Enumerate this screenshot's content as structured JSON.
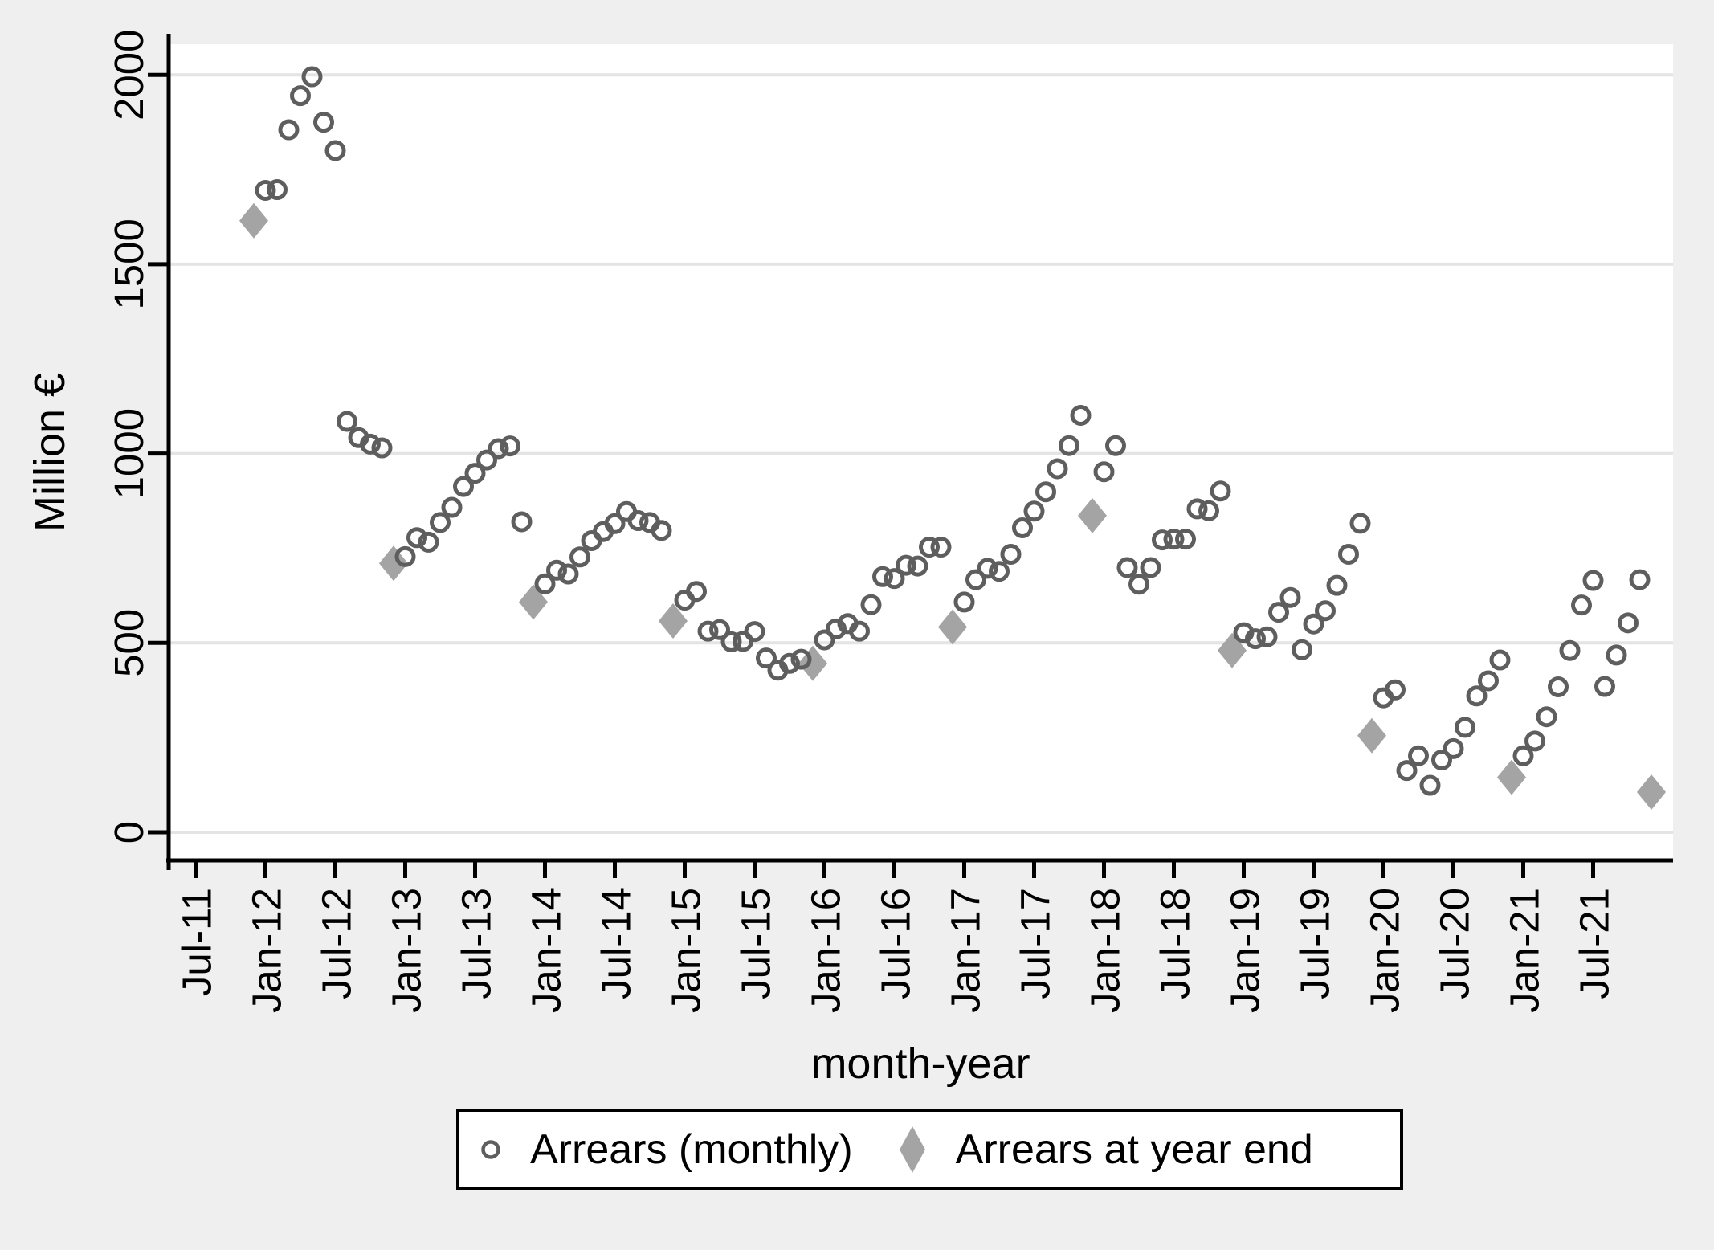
{
  "figure": {
    "background_color": "#efefef",
    "plot_background_color": "#ffffff",
    "grid_color": "#e4e4e4",
    "axis_color": "#000000",
    "text_color": "#000000"
  },
  "chart_data": {
    "type": "scatter",
    "title": "",
    "xlabel": "month-year",
    "ylabel": "Million €",
    "ylim": [
      0,
      2000
    ],
    "y_ticks": [
      0,
      500,
      1000,
      1500,
      2000
    ],
    "x_tick_labels": [
      "Jul-11",
      "Jan-12",
      "Jul-12",
      "Jan-13",
      "Jul-13",
      "Jan-14",
      "Jul-14",
      "Jan-15",
      "Jul-15",
      "Jan-16",
      "Jul-16",
      "Jan-17",
      "Jul-17",
      "Jan-18",
      "Jul-18",
      "Jan-19",
      "Jul-19",
      "Jan-20",
      "Jul-20",
      "Jan-21",
      "Jul-21"
    ],
    "grid": "horizontal",
    "legend_position": "bottom",
    "series": [
      {
        "name": "Arrears (monthly)",
        "marker": "circle",
        "color": "#5e5e5e",
        "points": [
          [
            "Jan-12",
            1695
          ],
          [
            "Feb-12",
            1697
          ],
          [
            "Mar-12",
            1855
          ],
          [
            "Apr-12",
            1945
          ],
          [
            "May-12",
            1995
          ],
          [
            "Jun-12",
            1875
          ],
          [
            "Jul-12",
            1800
          ],
          [
            "Aug-12",
            1085
          ],
          [
            "Sep-12",
            1042
          ],
          [
            "Oct-12",
            1025
          ],
          [
            "Nov-12",
            1015
          ],
          [
            "Jan-13",
            728
          ],
          [
            "Feb-13",
            778
          ],
          [
            "Mar-13",
            766
          ],
          [
            "Apr-13",
            818
          ],
          [
            "May-13",
            858
          ],
          [
            "Jun-13",
            913
          ],
          [
            "Jul-13",
            948
          ],
          [
            "Aug-13",
            983
          ],
          [
            "Sep-13",
            1013
          ],
          [
            "Oct-13",
            1020
          ],
          [
            "Nov-13",
            820
          ],
          [
            "Jan-14",
            656
          ],
          [
            "Feb-14",
            692
          ],
          [
            "Mar-14",
            682
          ],
          [
            "Apr-14",
            727
          ],
          [
            "May-14",
            770
          ],
          [
            "Jun-14",
            794
          ],
          [
            "Jul-14",
            815
          ],
          [
            "Aug-14",
            847
          ],
          [
            "Sep-14",
            823
          ],
          [
            "Oct-14",
            818
          ],
          [
            "Nov-14",
            797
          ],
          [
            "Jan-15",
            613
          ],
          [
            "Feb-15",
            636
          ],
          [
            "Mar-15",
            531
          ],
          [
            "Apr-15",
            535
          ],
          [
            "May-15",
            503
          ],
          [
            "Jun-15",
            504
          ],
          [
            "Jul-15",
            530
          ],
          [
            "Aug-15",
            460
          ],
          [
            "Sep-15",
            428
          ],
          [
            "Oct-15",
            446
          ],
          [
            "Nov-15",
            457
          ],
          [
            "Jan-16",
            508
          ],
          [
            "Feb-16",
            537
          ],
          [
            "Mar-16",
            551
          ],
          [
            "Apr-16",
            531
          ],
          [
            "May-16",
            601
          ],
          [
            "Jun-16",
            675
          ],
          [
            "Jul-16",
            670
          ],
          [
            "Aug-16",
            705
          ],
          [
            "Sep-16",
            703
          ],
          [
            "Oct-16",
            753
          ],
          [
            "Nov-16",
            753
          ],
          [
            "Jan-17",
            608
          ],
          [
            "Feb-17",
            667
          ],
          [
            "Mar-17",
            697
          ],
          [
            "Apr-17",
            689
          ],
          [
            "May-17",
            734
          ],
          [
            "Jun-17",
            804
          ],
          [
            "Jul-17",
            848
          ],
          [
            "Aug-17",
            899
          ],
          [
            "Sep-17",
            960
          ],
          [
            "Oct-17",
            1021
          ],
          [
            "Nov-17",
            1101
          ],
          [
            "Jan-18",
            952
          ],
          [
            "Feb-18",
            1021
          ],
          [
            "Mar-18",
            699
          ],
          [
            "Apr-18",
            655
          ],
          [
            "May-18",
            699
          ],
          [
            "Jun-18",
            772
          ],
          [
            "Jul-18",
            774
          ],
          [
            "Aug-18",
            774
          ],
          [
            "Sep-18",
            854
          ],
          [
            "Oct-18",
            849
          ],
          [
            "Nov-18",
            901
          ],
          [
            "Jan-19",
            527
          ],
          [
            "Feb-19",
            511
          ],
          [
            "Mar-19",
            516
          ],
          [
            "Apr-19",
            581
          ],
          [
            "May-19",
            620
          ],
          [
            "Jun-19",
            482
          ],
          [
            "Jul-19",
            550
          ],
          [
            "Aug-19",
            585
          ],
          [
            "Sep-19",
            652
          ],
          [
            "Oct-19",
            734
          ],
          [
            "Nov-19",
            816
          ],
          [
            "Jan-20",
            355
          ],
          [
            "Feb-20",
            376
          ],
          [
            "Mar-20",
            163
          ],
          [
            "Apr-20",
            202
          ],
          [
            "May-20",
            124
          ],
          [
            "Jun-20",
            191
          ],
          [
            "Jul-20",
            221
          ],
          [
            "Aug-20",
            277
          ],
          [
            "Sep-20",
            360
          ],
          [
            "Oct-20",
            400
          ],
          [
            "Nov-20",
            455
          ],
          [
            "Jan-21",
            202
          ],
          [
            "Feb-21",
            241
          ],
          [
            "Mar-21",
            305
          ],
          [
            "Apr-21",
            384
          ],
          [
            "May-21",
            480
          ],
          [
            "Jun-21",
            600
          ],
          [
            "Jul-21",
            665
          ],
          [
            "Aug-21",
            385
          ],
          [
            "Sep-21",
            468
          ],
          [
            "Oct-21",
            553
          ],
          [
            "Nov-21",
            667
          ]
        ]
      },
      {
        "name": "Arrears at year end",
        "marker": "diamond",
        "color": "#a4a4a4",
        "points": [
          [
            "Dec-11",
            1615
          ],
          [
            "Dec-12",
            710
          ],
          [
            "Dec-13",
            608
          ],
          [
            "Dec-14",
            558
          ],
          [
            "Dec-15",
            446
          ],
          [
            "Dec-16",
            542
          ],
          [
            "Dec-17",
            836
          ],
          [
            "Dec-18",
            480
          ],
          [
            "Dec-19",
            255
          ],
          [
            "Dec-20",
            145
          ],
          [
            "Dec-21",
            106
          ]
        ]
      }
    ]
  }
}
